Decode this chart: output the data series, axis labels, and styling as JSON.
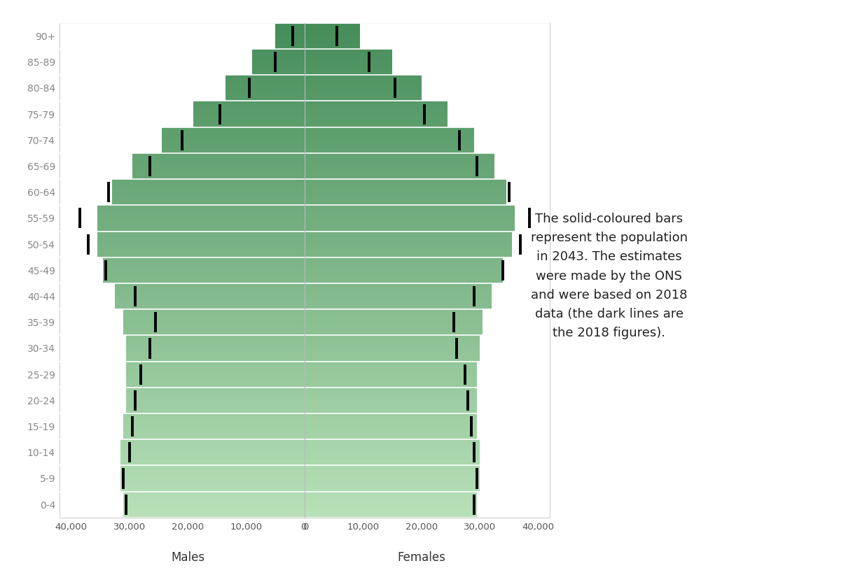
{
  "age_groups": [
    "0-4",
    "5-9",
    "10-14",
    "15-19",
    "20-24",
    "25-29",
    "30-34",
    "35-39",
    "40-44",
    "45-49",
    "50-54",
    "55-59",
    "60-64",
    "65-69",
    "70-74",
    "75-79",
    "80-84",
    "85-89",
    "90+"
  ],
  "males_2043": [
    31000,
    31500,
    31500,
    31000,
    30500,
    30500,
    30500,
    31000,
    32500,
    34500,
    35500,
    35500,
    33000,
    29500,
    24500,
    19000,
    13500,
    9000,
    5000
  ],
  "females_2043": [
    29500,
    30000,
    30000,
    29500,
    29500,
    29500,
    30000,
    30500,
    32000,
    34000,
    35500,
    36000,
    34500,
    32500,
    29000,
    24500,
    20000,
    15000,
    9500
  ],
  "males_2018": [
    30500,
    31000,
    30000,
    29500,
    29000,
    28000,
    26500,
    25500,
    29000,
    34000,
    37000,
    38500,
    33500,
    26500,
    21000,
    14500,
    9500,
    5000,
    2000
  ],
  "females_2018": [
    29000,
    29500,
    29000,
    28500,
    28000,
    27500,
    26000,
    25500,
    29000,
    34000,
    37000,
    38500,
    35000,
    29500,
    26500,
    20500,
    15500,
    11000,
    5500
  ],
  "annotation_text": "The solid-coloured bars\nrepresent the population\nin 2043. The estimates\nwere made by the ONS\nand were based on 2018\ndata (the dark lines are\nthe 2018 figures).",
  "xlabel_male": "Males",
  "xlabel_female": "Females",
  "xlim": 42000,
  "color_dark": [
    0.27,
    0.55,
    0.35
  ],
  "color_light": [
    0.72,
    0.88,
    0.72
  ],
  "fig_width": 12.08,
  "fig_height": 8.22,
  "annotation_fontsize": 13,
  "tick_fontsize": 9.5,
  "label_fontsize": 12,
  "ytick_fontsize": 10
}
